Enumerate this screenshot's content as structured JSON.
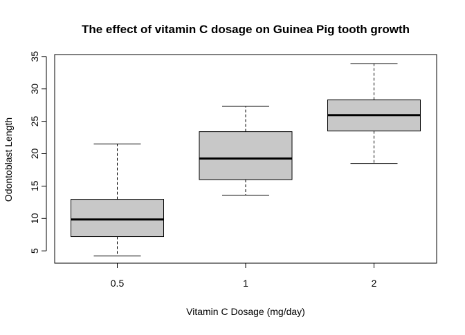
{
  "chart_data": {
    "type": "boxplot",
    "title": "The effect of vitamin C dosage on Guinea Pig tooth growth",
    "xlabel": "Vitamin C Dosage (mg/day)",
    "ylabel": "Odontoblast Length",
    "categories": [
      "0.5",
      "1",
      "2"
    ],
    "ylim": [
      3.1,
      35.3
    ],
    "yticks": [
      5,
      10,
      15,
      20,
      25,
      30,
      35
    ],
    "grid": false,
    "legend": "none",
    "box_fill": "#c8c8c8",
    "boxes": [
      {
        "category": "0.5",
        "whisker_low": 4.2,
        "q1": 7.2,
        "median": 9.85,
        "q3": 12.95,
        "whisker_high": 21.5
      },
      {
        "category": "1",
        "whisker_low": 13.6,
        "q1": 16.0,
        "median": 19.25,
        "q3": 23.4,
        "whisker_high": 27.3
      },
      {
        "category": "2",
        "whisker_low": 18.5,
        "q1": 23.5,
        "median": 25.95,
        "q3": 28.3,
        "whisker_high": 33.9
      }
    ]
  }
}
